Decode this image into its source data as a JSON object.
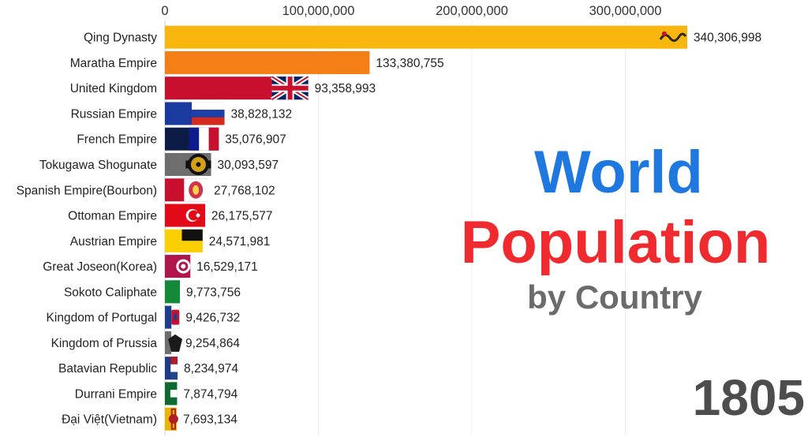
{
  "title": {
    "line1": "World",
    "line2": "Population",
    "line3": "by Country"
  },
  "year": "1805",
  "colors": {
    "title_blue": "#1f78e0",
    "title_red": "#ef2b2f",
    "subtitle_gray": "#6b6b6b",
    "year_gray": "#4d4d4d"
  },
  "chart_data": {
    "type": "bar",
    "orientation": "horizontal",
    "xlim": [
      0,
      360000000
    ],
    "xticks": [
      0,
      100000000,
      200000000,
      300000000
    ],
    "xtick_labels": [
      "0",
      "100,000,000",
      "200,000,000",
      "300,000,000"
    ],
    "grid": true,
    "categories": [
      "Qing Dynasty",
      "Maratha Empire",
      "United Kingdom",
      "Russian Empire",
      "French Empire",
      "Tokugawa Shogunate",
      "Spanish Empire(Bourbon)",
      "Ottoman Empire",
      "Austrian Empire",
      "Great Joseon(Korea)",
      "Sokoto Caliphate",
      "Kingdom of Portugal",
      "Kingdom of Prussia",
      "Batavian Republic",
      "Durrani Empire",
      "Đại Việt(Vietnam)"
    ],
    "values": [
      340306998,
      133380755,
      93358993,
      38828132,
      35076907,
      30093597,
      27768102,
      26175577,
      24571981,
      16529171,
      9773756,
      9426732,
      9254864,
      8234974,
      7874794,
      7693134
    ],
    "value_labels": [
      "340,306,998",
      "133,380,755",
      "93,358,993",
      "38,828,132",
      "35,076,907",
      "30,093,597",
      "27,768,102",
      "26,175,577",
      "24,571,981",
      "16,529,171",
      "9,773,756",
      "9,426,732",
      "9,254,864",
      "8,234,974",
      "7,874,794",
      "7,693,134"
    ],
    "bar_colors": [
      "#f8b60f",
      "#f57f17",
      "#c8102e",
      "#1b3aa0",
      "#0c1c47",
      "#6e6e6e",
      "#c8102e",
      "#e30a17",
      "#fccf00",
      "#b0154b",
      "#138a3a",
      "#1b3f8f",
      "#6e6e6e",
      "#1e3a8a",
      "#0f6a32",
      "#e8b600"
    ],
    "flag_icons": [
      "dragon-flag-icon",
      "maratha-flag-icon",
      "union-jack-flag-icon",
      "russian-flag-icon",
      "french-flag-icon",
      "tokugawa-crest-icon",
      "spanish-arms-icon",
      "ottoman-flag-icon",
      "austrian-flag-icon",
      "joseon-flag-icon",
      "sokoto-flag-icon",
      "portuguese-arms-icon",
      "prussian-eagle-icon",
      "batavian-flag-icon",
      "durrani-flag-icon",
      "vietnam-flag-icon"
    ]
  }
}
